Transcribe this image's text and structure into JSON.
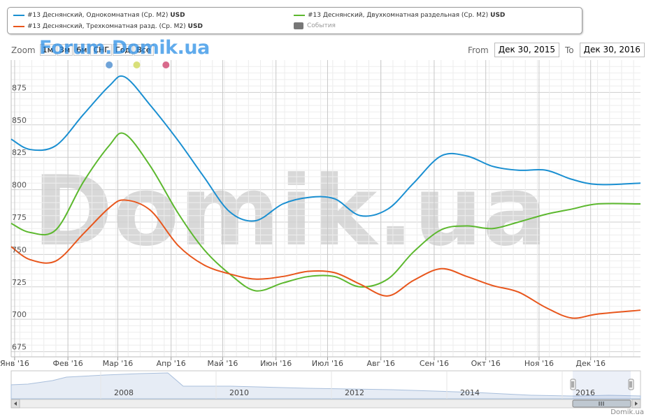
{
  "legend": {
    "items": [
      {
        "label": "#13 Деснянский, Однокомнатная (Ср. М2)",
        "unit": "USD",
        "color": "#1a8fd1"
      },
      {
        "label": "#13 Деснянский, Двухкомнатная раздельная (Ср. М2)",
        "unit": "USD",
        "color": "#5cb82e"
      },
      {
        "label": "#13 Деснянский, Трехкомнатная разд. (Ср. М2)",
        "unit": "USD",
        "color": "#e8561c"
      },
      {
        "label": "События",
        "color": "#777777"
      }
    ]
  },
  "zoom": {
    "label": "Zoom",
    "buttons": [
      "1м",
      "3м",
      "6м",
      "СНГ",
      "Год",
      "Все"
    ]
  },
  "watermark_top": "Forum.Domik.ua",
  "watermark_main": "Domik.ua",
  "range": {
    "from_label": "From",
    "from_value": "Дек 30, 2015",
    "to_label": "To",
    "to_value": "Дек 30, 2016"
  },
  "credit": "Domik.ua",
  "chart_data": {
    "type": "line",
    "x": [
      "2015-12-30",
      "2016-01-10",
      "2016-01-25",
      "2016-02-10",
      "2016-02-25",
      "2016-03-05",
      "2016-03-20",
      "2016-04-05",
      "2016-04-20",
      "2016-05-05",
      "2016-05-20",
      "2016-06-05",
      "2016-06-20",
      "2016-07-05",
      "2016-07-20",
      "2016-08-05",
      "2016-08-20",
      "2016-09-05",
      "2016-09-20",
      "2016-10-05",
      "2016-10-20",
      "2016-11-05",
      "2016-11-20",
      "2016-12-05",
      "2016-12-30"
    ],
    "series": [
      {
        "name": "#13 Деснянский, Однокомнатная (Ср. М2)",
        "color": "#1a8fd1",
        "values": [
          839,
          831,
          834,
          858,
          880,
          887,
          865,
          838,
          810,
          783,
          776,
          789,
          794,
          793,
          780,
          785,
          805,
          826,
          826,
          818,
          815,
          815,
          808,
          804,
          805
        ]
      },
      {
        "name": "#13 Деснянский, Двухкомнатная раздельная (Ср. М2)",
        "color": "#5cb82e",
        "values": [
          774,
          767,
          769,
          806,
          834,
          843,
          818,
          782,
          754,
          735,
          722,
          728,
          733,
          733,
          725,
          731,
          752,
          769,
          772,
          770,
          775,
          781,
          785,
          789,
          789
        ]
      },
      {
        "name": "#13 Деснянский, Трехкомнатная разд. (Ср. М2)",
        "color": "#e8561c",
        "values": [
          756,
          746,
          745,
          766,
          786,
          792,
          784,
          757,
          742,
          735,
          731,
          733,
          737,
          736,
          727,
          718,
          730,
          739,
          733,
          726,
          721,
          709,
          701,
          704,
          707
        ]
      }
    ],
    "xticks": [
      "Янв '16",
      "Фев '16",
      "Мар '16",
      "Апр '16",
      "Май '16",
      "Июн '16",
      "Июл '16",
      "Авг '16",
      "Сен '16",
      "Окт '16",
      "Ноя '16",
      "Дек '16"
    ],
    "xtick_dates": [
      "2016-01-01",
      "2016-02-01",
      "2016-03-01",
      "2016-04-01",
      "2016-05-01",
      "2016-06-01",
      "2016-07-01",
      "2016-08-01",
      "2016-09-01",
      "2016-10-01",
      "2016-11-01",
      "2016-12-01"
    ],
    "yticks": [
      675,
      700,
      725,
      750,
      775,
      800,
      825,
      850,
      875
    ],
    "ylim": [
      671,
      900
    ],
    "xlim": [
      "2015-12-30",
      "2016-12-30"
    ],
    "grid": true,
    "legend_position": "top",
    "event_markers": [
      {
        "date": "2016-02-25",
        "color": "#6fa3d8"
      },
      {
        "date": "2016-03-12",
        "color": "#d9e07a"
      },
      {
        "date": "2016-03-29",
        "color": "#d86a8c"
      }
    ],
    "navigator": {
      "years": [
        "2008",
        "2010",
        "2012",
        "2014",
        "2016"
      ]
    }
  }
}
